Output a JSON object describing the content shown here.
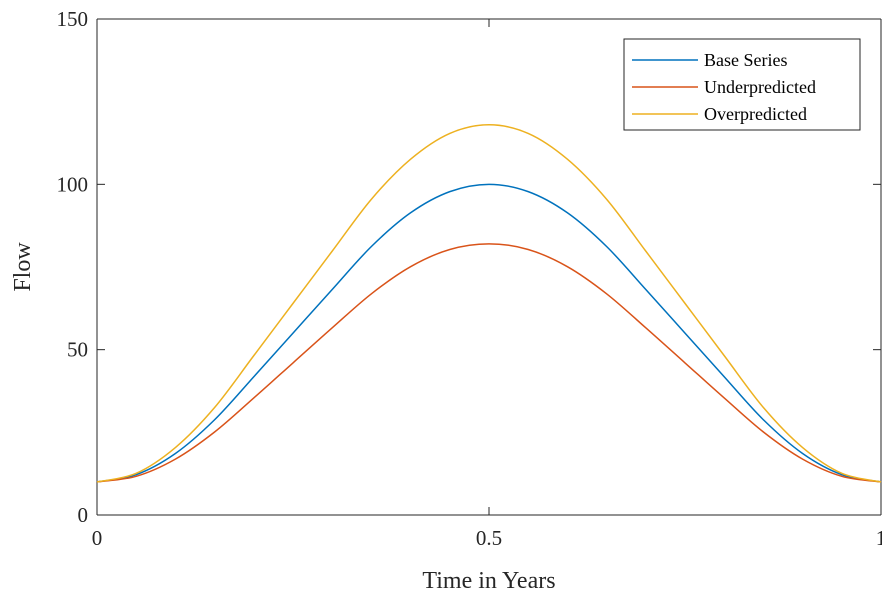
{
  "chart_data": {
    "type": "line",
    "xlabel": "Time in Years",
    "ylabel": "Flow",
    "xlim": [
      0,
      1
    ],
    "ylim": [
      0,
      150
    ],
    "xticks": [
      0,
      0.5,
      1
    ],
    "xtick_labels": [
      "0",
      "0.5",
      "1"
    ],
    "yticks": [
      0,
      50,
      100,
      150
    ],
    "ytick_labels": [
      "0",
      "50",
      "100",
      "150"
    ],
    "grid": false,
    "legend_position": "top-right",
    "x": [
      0,
      0.05,
      0.1,
      0.15,
      0.2,
      0.25,
      0.3,
      0.35,
      0.4,
      0.45,
      0.5,
      0.55,
      0.6,
      0.65,
      0.7,
      0.75,
      0.8,
      0.85,
      0.9,
      0.95,
      1
    ],
    "series": [
      {
        "name": "Base Series",
        "color": "#0072BD",
        "values": [
          10,
          12.2,
          18.6,
          28.8,
          41.8,
          55,
          68.2,
          81.2,
          91.4,
          97.8,
          100,
          97.8,
          91.4,
          81.2,
          68.2,
          55,
          41.8,
          28.8,
          18.6,
          12.2,
          10
        ]
      },
      {
        "name": "Underpredicted",
        "color": "#D95319",
        "values": [
          10,
          11.7,
          16.9,
          25.1,
          35.4,
          46,
          56.6,
          66.9,
          75.1,
          80.3,
          82,
          80.3,
          75.1,
          66.9,
          56.6,
          46,
          35.4,
          25.1,
          16.9,
          11.7,
          10
        ]
      },
      {
        "name": "Overpredicted",
        "color": "#EDB120",
        "values": [
          10,
          12.6,
          20.4,
          32.5,
          48.2,
          64,
          79.8,
          95.5,
          107.6,
          115.4,
          118,
          115.4,
          107.6,
          95.5,
          79.8,
          64,
          48.2,
          32.5,
          20.4,
          12.6,
          10
        ]
      }
    ]
  }
}
